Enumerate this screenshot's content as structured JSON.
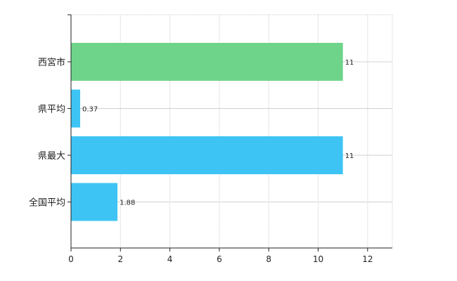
{
  "chart_data": {
    "type": "bar",
    "orientation": "horizontal",
    "categories": [
      "西宮市",
      "県平均",
      "県最大",
      "全国平均"
    ],
    "values": [
      11,
      0.37,
      11,
      1.88
    ],
    "value_labels": [
      "11",
      "0.37",
      "11",
      "1.88"
    ],
    "bar_colors": [
      "#6dd48a",
      "#3ec4f4",
      "#3ec4f4",
      "#3ec4f4"
    ],
    "xlim": [
      0,
      13
    ],
    "xticks": [
      "0",
      "2",
      "4",
      "6",
      "8",
      "10",
      "12"
    ],
    "grid": "on",
    "title": "",
    "xlabel": "",
    "ylabel": ""
  }
}
